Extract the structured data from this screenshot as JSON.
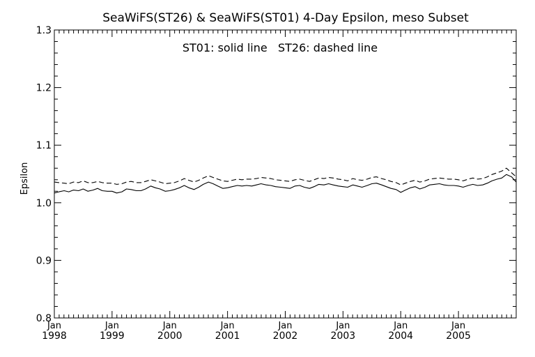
{
  "chart_data": {
    "type": "line",
    "title": "SeaWiFS(ST26) & SeaWiFS(ST01) 4-Day Epsilon, meso Subset",
    "annotation": "ST01: solid line   ST26: dashed line",
    "ylabel": "Epsilon",
    "xlabel": "",
    "xlim": [
      1998.0,
      2006.0
    ],
    "ylim": [
      0.8,
      1.3
    ],
    "yticks": [
      0.8,
      0.9,
      1.0,
      1.1,
      1.2,
      1.3
    ],
    "ytick_labels": [
      "0.8",
      "0.9",
      "1.0",
      "1.1",
      "1.2",
      "1.3"
    ],
    "xticks": [
      {
        "value": 1998,
        "month": "Jan",
        "year": "1998"
      },
      {
        "value": 1999,
        "month": "Jan",
        "year": "1999"
      },
      {
        "value": 2000,
        "month": "Jan",
        "year": "2000"
      },
      {
        "value": 2001,
        "month": "Jan",
        "year": "2001"
      },
      {
        "value": 2002,
        "month": "Jan",
        "year": "2002"
      },
      {
        "value": 2003,
        "month": "Jan",
        "year": "2003"
      },
      {
        "value": 2004,
        "month": "Jan",
        "year": "2004"
      },
      {
        "value": 2005,
        "month": "Jan",
        "year": "2005"
      }
    ],
    "grid": false,
    "series": [
      {
        "style": "solid",
        "x": [
          1998.0,
          1998.08,
          1998.17,
          1998.25,
          1998.33,
          1998.42,
          1998.5,
          1998.58,
          1998.67,
          1998.75,
          1998.83,
          1998.92,
          1999.0,
          1999.08,
          1999.17,
          1999.25,
          1999.33,
          1999.42,
          1999.5,
          1999.58,
          1999.67,
          1999.75,
          1999.83,
          1999.92,
          2000.0,
          2000.08,
          2000.17,
          2000.25,
          2000.33,
          2000.42,
          2000.5,
          2000.58,
          2000.67,
          2000.75,
          2000.83,
          2000.92,
          2001.0,
          2001.08,
          2001.17,
          2001.25,
          2001.33,
          2001.42,
          2001.5,
          2001.58,
          2001.67,
          2001.75,
          2001.83,
          2001.92,
          2002.0,
          2002.08,
          2002.17,
          2002.25,
          2002.33,
          2002.42,
          2002.5,
          2002.58,
          2002.67,
          2002.75,
          2002.83,
          2002.92,
          2003.0,
          2003.08,
          2003.17,
          2003.25,
          2003.33,
          2003.42,
          2003.5,
          2003.58,
          2003.67,
          2003.75,
          2003.83,
          2003.92,
          2004.0,
          2004.08,
          2004.17,
          2004.25,
          2004.33,
          2004.42,
          2004.5,
          2004.58,
          2004.67,
          2004.75,
          2004.83,
          2004.92,
          2005.0,
          2005.08,
          2005.17,
          2005.25,
          2005.33,
          2005.42,
          2005.5,
          2005.58,
          2005.67,
          2005.75,
          2005.83,
          2005.92,
          2006.0
        ],
        "y": [
          1.017,
          1.019,
          1.021,
          1.019,
          1.022,
          1.021,
          1.024,
          1.02,
          1.022,
          1.025,
          1.021,
          1.02,
          1.02,
          1.017,
          1.019,
          1.024,
          1.023,
          1.021,
          1.021,
          1.024,
          1.029,
          1.026,
          1.024,
          1.02,
          1.021,
          1.023,
          1.026,
          1.03,
          1.026,
          1.023,
          1.027,
          1.032,
          1.036,
          1.033,
          1.029,
          1.025,
          1.026,
          1.028,
          1.03,
          1.029,
          1.03,
          1.029,
          1.031,
          1.033,
          1.031,
          1.03,
          1.028,
          1.027,
          1.026,
          1.025,
          1.029,
          1.03,
          1.027,
          1.025,
          1.028,
          1.032,
          1.031,
          1.033,
          1.031,
          1.029,
          1.028,
          1.027,
          1.031,
          1.029,
          1.027,
          1.03,
          1.033,
          1.034,
          1.031,
          1.028,
          1.025,
          1.023,
          1.018,
          1.022,
          1.026,
          1.028,
          1.024,
          1.027,
          1.031,
          1.032,
          1.033,
          1.031,
          1.03,
          1.03,
          1.029,
          1.027,
          1.03,
          1.032,
          1.03,
          1.031,
          1.034,
          1.038,
          1.041,
          1.043,
          1.049,
          1.045,
          1.036
        ]
      },
      {
        "style": "dashed",
        "x": [
          1998.0,
          1998.08,
          1998.17,
          1998.25,
          1998.33,
          1998.42,
          1998.5,
          1998.58,
          1998.67,
          1998.75,
          1998.83,
          1998.92,
          1999.0,
          1999.08,
          1999.17,
          1999.25,
          1999.33,
          1999.42,
          1999.5,
          1999.58,
          1999.67,
          1999.75,
          1999.83,
          1999.92,
          2000.0,
          2000.08,
          2000.17,
          2000.25,
          2000.33,
          2000.42,
          2000.5,
          2000.58,
          2000.67,
          2000.75,
          2000.83,
          2000.92,
          2001.0,
          2001.08,
          2001.17,
          2001.25,
          2001.33,
          2001.42,
          2001.5,
          2001.58,
          2001.67,
          2001.75,
          2001.83,
          2001.92,
          2002.0,
          2002.08,
          2002.17,
          2002.25,
          2002.33,
          2002.42,
          2002.5,
          2002.58,
          2002.67,
          2002.75,
          2002.83,
          2002.92,
          2003.0,
          2003.08,
          2003.17,
          2003.25,
          2003.33,
          2003.42,
          2003.5,
          2003.58,
          2003.67,
          2003.75,
          2003.83,
          2003.92,
          2004.0,
          2004.08,
          2004.17,
          2004.25,
          2004.33,
          2004.42,
          2004.5,
          2004.58,
          2004.67,
          2004.75,
          2004.83,
          2004.92,
          2005.0,
          2005.08,
          2005.17,
          2005.25,
          2005.33,
          2005.42,
          2005.5,
          2005.58,
          2005.67,
          2005.75,
          2005.83,
          2005.92,
          2006.0
        ],
        "y": [
          1.036,
          1.035,
          1.034,
          1.033,
          1.036,
          1.035,
          1.038,
          1.035,
          1.035,
          1.037,
          1.035,
          1.034,
          1.034,
          1.032,
          1.033,
          1.036,
          1.037,
          1.035,
          1.035,
          1.037,
          1.04,
          1.038,
          1.036,
          1.033,
          1.034,
          1.035,
          1.038,
          1.042,
          1.039,
          1.036,
          1.039,
          1.043,
          1.047,
          1.044,
          1.041,
          1.038,
          1.037,
          1.039,
          1.041,
          1.04,
          1.041,
          1.041,
          1.042,
          1.044,
          1.043,
          1.042,
          1.04,
          1.039,
          1.038,
          1.037,
          1.04,
          1.041,
          1.039,
          1.037,
          1.04,
          1.043,
          1.042,
          1.044,
          1.043,
          1.041,
          1.04,
          1.038,
          1.042,
          1.04,
          1.039,
          1.041,
          1.044,
          1.045,
          1.042,
          1.04,
          1.037,
          1.035,
          1.031,
          1.034,
          1.037,
          1.039,
          1.036,
          1.038,
          1.041,
          1.042,
          1.043,
          1.042,
          1.041,
          1.041,
          1.04,
          1.038,
          1.041,
          1.043,
          1.041,
          1.042,
          1.045,
          1.049,
          1.052,
          1.055,
          1.06,
          1.052,
          1.045
        ]
      }
    ]
  }
}
